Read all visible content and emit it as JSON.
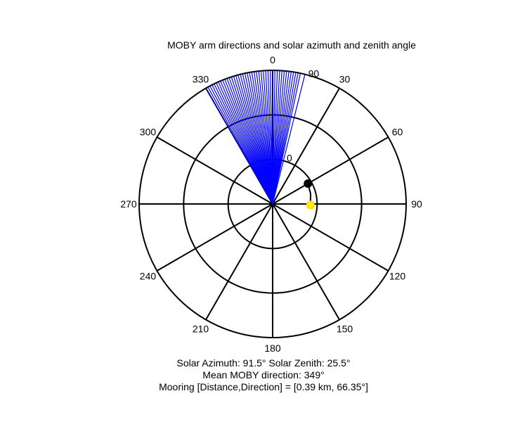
{
  "chart_data": {
    "type": "polar",
    "title": "MOBY arm directions and solar azimuth and zenith angle",
    "theta_ticks": [
      "0",
      "30",
      "60",
      "90",
      "120",
      "150",
      "180",
      "210",
      "240",
      "270",
      "300",
      "330"
    ],
    "radial_ticks": [
      "0",
      "90"
    ],
    "radial_range": [
      0,
      90
    ],
    "grid": true,
    "series": [
      {
        "type": "direction-lines",
        "color": "#0000ff",
        "directions_deg": [
          330,
          331,
          332,
          333,
          334,
          335,
          336,
          337,
          338,
          339,
          340,
          341,
          342,
          343,
          344,
          345,
          346,
          347,
          348,
          349,
          350,
          351,
          352,
          353,
          354,
          355,
          356,
          357,
          358,
          359,
          0,
          1,
          2,
          3,
          4,
          5,
          6,
          7,
          8,
          9,
          10,
          11,
          12,
          14
        ]
      },
      {
        "type": "point-track",
        "color": "#000000",
        "points": [
          {
            "azimuth": 60,
            "zenith": 27.5
          },
          {
            "azimuth": 75,
            "zenith": 26.5
          },
          {
            "azimuth": 91.5,
            "zenith": 25.5
          }
        ]
      },
      {
        "type": "marker",
        "color": "#000000",
        "azimuth": 60,
        "zenith": 27.5
      },
      {
        "type": "marker",
        "color": "#ffee00",
        "azimuth": 91.5,
        "zenith": 25.5
      }
    ]
  },
  "captions": {
    "line1": "Solar Azimuth: 91.5°   Solar Zenith: 25.5°",
    "line2": "Mean MOBY direction: 349°",
    "line3": "Mooring [Distance,Direction] = [0.39 km, 66.35°]"
  }
}
